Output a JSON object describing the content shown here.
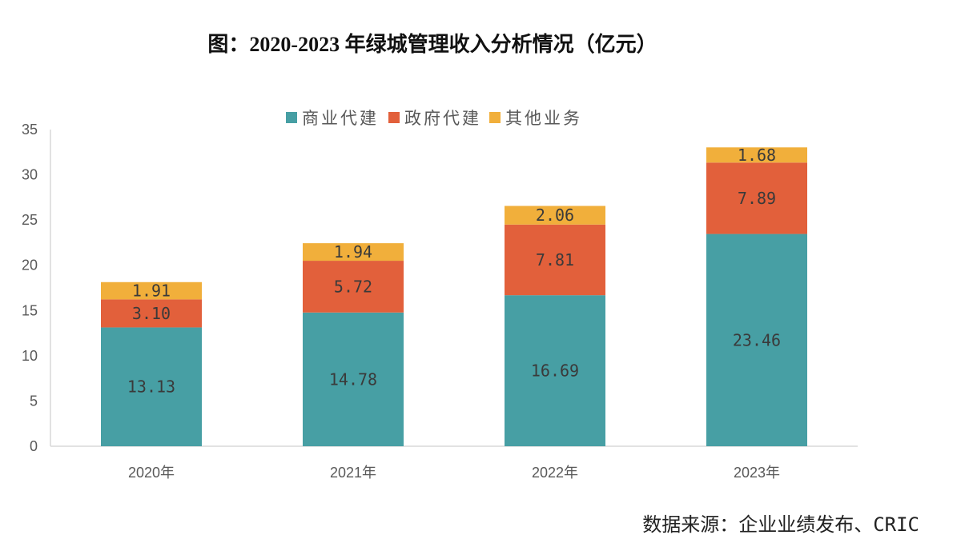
{
  "source": "数据来源：企业业绩发布、CRIC",
  "chart_data": {
    "type": "bar",
    "stacked": true,
    "title": "图：2020-2023 年绿城管理收入分析情况（亿元）",
    "xlabel": "",
    "ylabel": "",
    "ylim": [
      0,
      35
    ],
    "yticks": [
      0,
      5,
      10,
      15,
      20,
      25,
      30,
      35
    ],
    "grid": false,
    "legend": "top-center",
    "categories": [
      "2020年",
      "2021年",
      "2022年",
      "2023年"
    ],
    "series": [
      {
        "name": "商业代建",
        "color": "#479FA4",
        "values": [
          13.13,
          14.78,
          16.69,
          23.46
        ],
        "labels": [
          "13.13",
          "14.78",
          "16.69",
          "23.46"
        ]
      },
      {
        "name": "政府代建",
        "color": "#E2603B",
        "values": [
          3.1,
          5.72,
          7.81,
          7.89
        ],
        "labels": [
          "3.10",
          "5.72",
          "7.81",
          "7.89"
        ]
      },
      {
        "name": "其他业务",
        "color": "#F1AF3B",
        "values": [
          1.91,
          1.94,
          2.06,
          1.68
        ],
        "labels": [
          "1.91",
          "1.94",
          "2.06",
          "1.68"
        ]
      }
    ]
  }
}
